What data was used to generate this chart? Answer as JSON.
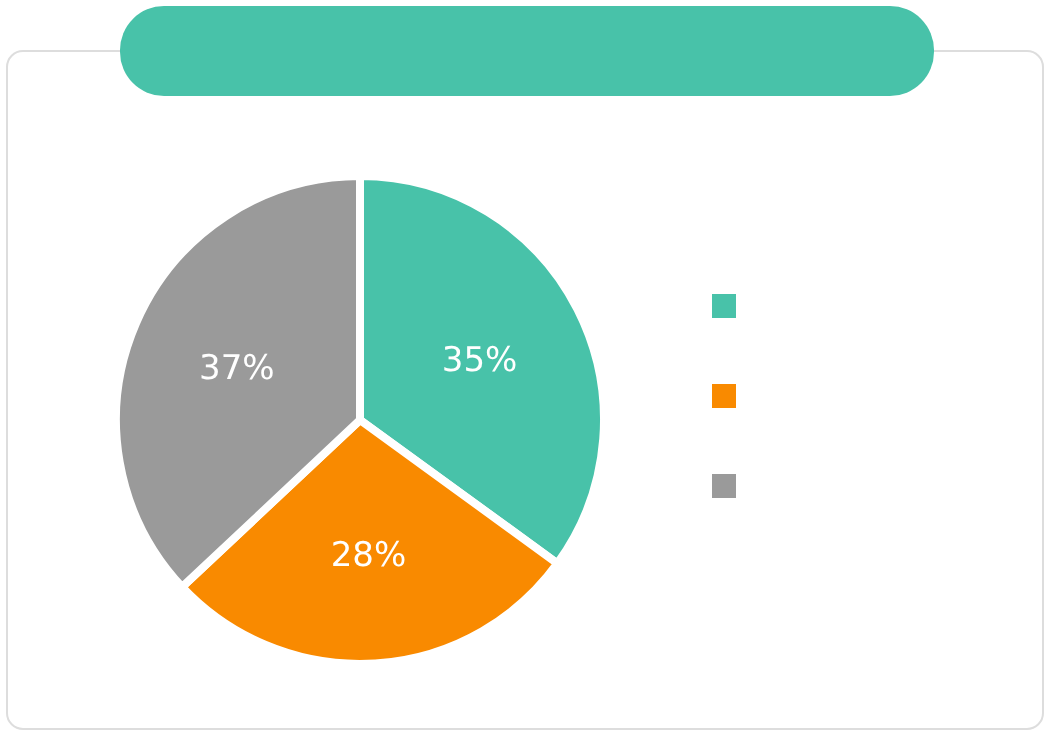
{
  "chart_data": {
    "type": "pie",
    "categories": [
      null,
      null,
      null
    ],
    "values": [
      35,
      28,
      37
    ],
    "colors": [
      "#48c2a9",
      "#f98a00",
      "#9a9a9a"
    ],
    "value_labels": [
      "35%",
      "28%",
      "37%"
    ]
  }
}
